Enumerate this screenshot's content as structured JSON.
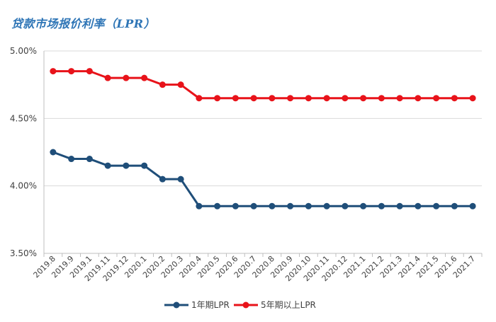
{
  "chart_data": {
    "type": "line",
    "title": "贷款市场报价利率（LPR）",
    "xlabel": "",
    "ylabel": "",
    "categories": [
      "2019.8",
      "2019.9",
      "2019.1",
      "2019.11",
      "2019.12",
      "2020.1",
      "2020.2",
      "2020.3",
      "2020.4",
      "2020.5",
      "2020.6",
      "2020.7",
      "2020.8",
      "2020.9",
      "2020.10",
      "2020.11",
      "2020.12",
      "2021.1",
      "2021.2",
      "2021.3",
      "2021.4",
      "2021.5",
      "2021.6",
      "2021.7"
    ],
    "series": [
      {
        "name": "1年期LPR",
        "color": "#1f4e79",
        "values": [
          4.25,
          4.2,
          4.2,
          4.15,
          4.15,
          4.15,
          4.05,
          4.05,
          3.85,
          3.85,
          3.85,
          3.85,
          3.85,
          3.85,
          3.85,
          3.85,
          3.85,
          3.85,
          3.85,
          3.85,
          3.85,
          3.85,
          3.85,
          3.85
        ]
      },
      {
        "name": "5年期以上LPR",
        "color": "#e8131a",
        "values": [
          4.85,
          4.85,
          4.85,
          4.8,
          4.8,
          4.8,
          4.75,
          4.75,
          4.65,
          4.65,
          4.65,
          4.65,
          4.65,
          4.65,
          4.65,
          4.65,
          4.65,
          4.65,
          4.65,
          4.65,
          4.65,
          4.65,
          4.65,
          4.65
        ]
      }
    ],
    "ylim": [
      3.5,
      5.0
    ],
    "yticks": [
      3.5,
      4.0,
      4.5,
      5.0
    ],
    "ytick_labels": [
      "3.50%",
      "4.00%",
      "4.50%",
      "5.00%"
    ],
    "grid": "horizontal",
    "legend": "bottom-center"
  }
}
